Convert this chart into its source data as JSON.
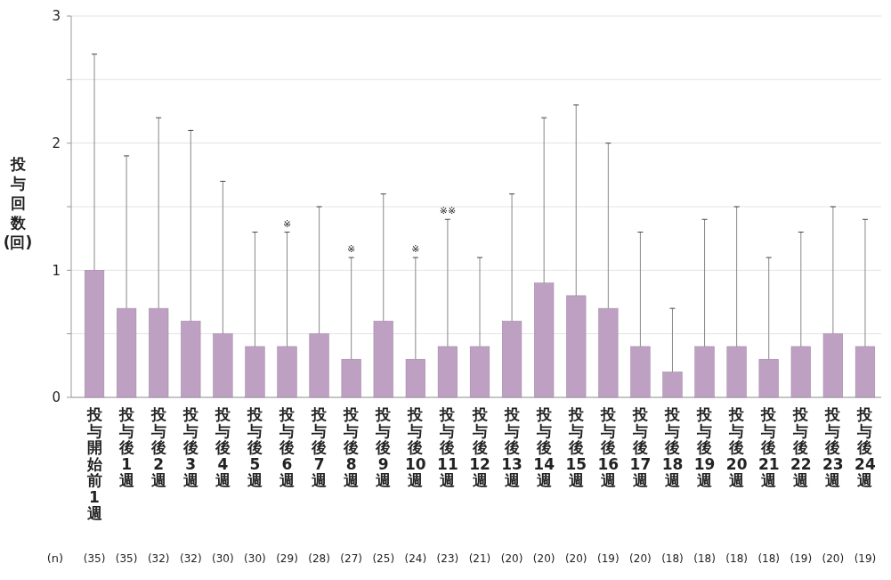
{
  "chart_data": {
    "type": "bar",
    "ylabel": "投与回数(回)",
    "categories": [
      "投与開始前1週",
      "投与後1週",
      "投与後2週",
      "投与後3週",
      "投与後4週",
      "投与後5週",
      "投与後6週",
      "投与後7週",
      "投与後8週",
      "投与後9週",
      "投与後10週",
      "投与後11週",
      "投与後12週",
      "投与後13週",
      "投与後14週",
      "投与後15週",
      "投与後16週",
      "投与後17週",
      "投与後18週",
      "投与後19週",
      "投与後20週",
      "投与後21週",
      "投与後22週",
      "投与後23週",
      "投与後24週"
    ],
    "values": [
      1.0,
      0.7,
      0.7,
      0.6,
      0.5,
      0.4,
      0.4,
      0.5,
      0.3,
      0.6,
      0.3,
      0.4,
      0.4,
      0.6,
      0.9,
      0.8,
      0.7,
      0.4,
      0.2,
      0.4,
      0.4,
      0.3,
      0.4,
      0.5,
      0.4
    ],
    "errors": [
      [
        1.0,
        2.7
      ],
      [
        0.7,
        1.9
      ],
      [
        0.7,
        2.2
      ],
      [
        0.6,
        2.1
      ],
      [
        0.5,
        1.7
      ],
      [
        0.4,
        1.3
      ],
      [
        0.4,
        1.3
      ],
      [
        0.5,
        1.5
      ],
      [
        0.3,
        1.1
      ],
      [
        0.6,
        1.6
      ],
      [
        0.3,
        1.1
      ],
      [
        0.4,
        1.4
      ],
      [
        0.4,
        1.1
      ],
      [
        0.6,
        1.6
      ],
      [
        0.9,
        2.2
      ],
      [
        0.8,
        2.3
      ],
      [
        0.7,
        2.0
      ],
      [
        0.4,
        1.3
      ],
      [
        0.2,
        0.7
      ],
      [
        0.4,
        1.4
      ],
      [
        0.4,
        1.5
      ],
      [
        0.3,
        1.1
      ],
      [
        0.4,
        1.3
      ],
      [
        0.5,
        1.5
      ],
      [
        0.4,
        1.4
      ]
    ],
    "color": "#bea0c3",
    "ylim": [
      0,
      3
    ],
    "yticks": [
      0,
      {
        "value": 0.5,
        "label": null
      },
      1,
      {
        "value": 1.5,
        "label": null
      },
      2,
      {
        "value": 2.5,
        "label": null
      },
      3
    ],
    "grid": "y",
    "annotations": [
      {
        "text": "※",
        "x": "投与後6週",
        "y": 1.3
      },
      {
        "text": "※",
        "x": "投与後8週",
        "y": 1.1
      },
      {
        "text": "※",
        "x": "投与後10週",
        "y": 1.1
      },
      {
        "text": "※※",
        "x": "投与後11週",
        "y": 1.4
      },
      "(n)",
      "(35)",
      "(35)",
      "(32)",
      "(32)",
      "(30)",
      "(30)",
      "(29)",
      "(28)",
      "(27)",
      "(25)",
      "(24)",
      "(23)",
      "(21)",
      "(20)",
      "(20)",
      "(20)",
      "(19)",
      "(20)",
      "(18)",
      "(18)",
      "(18)",
      "(18)",
      "(19)",
      "(20)",
      "(19)"
    ]
  }
}
